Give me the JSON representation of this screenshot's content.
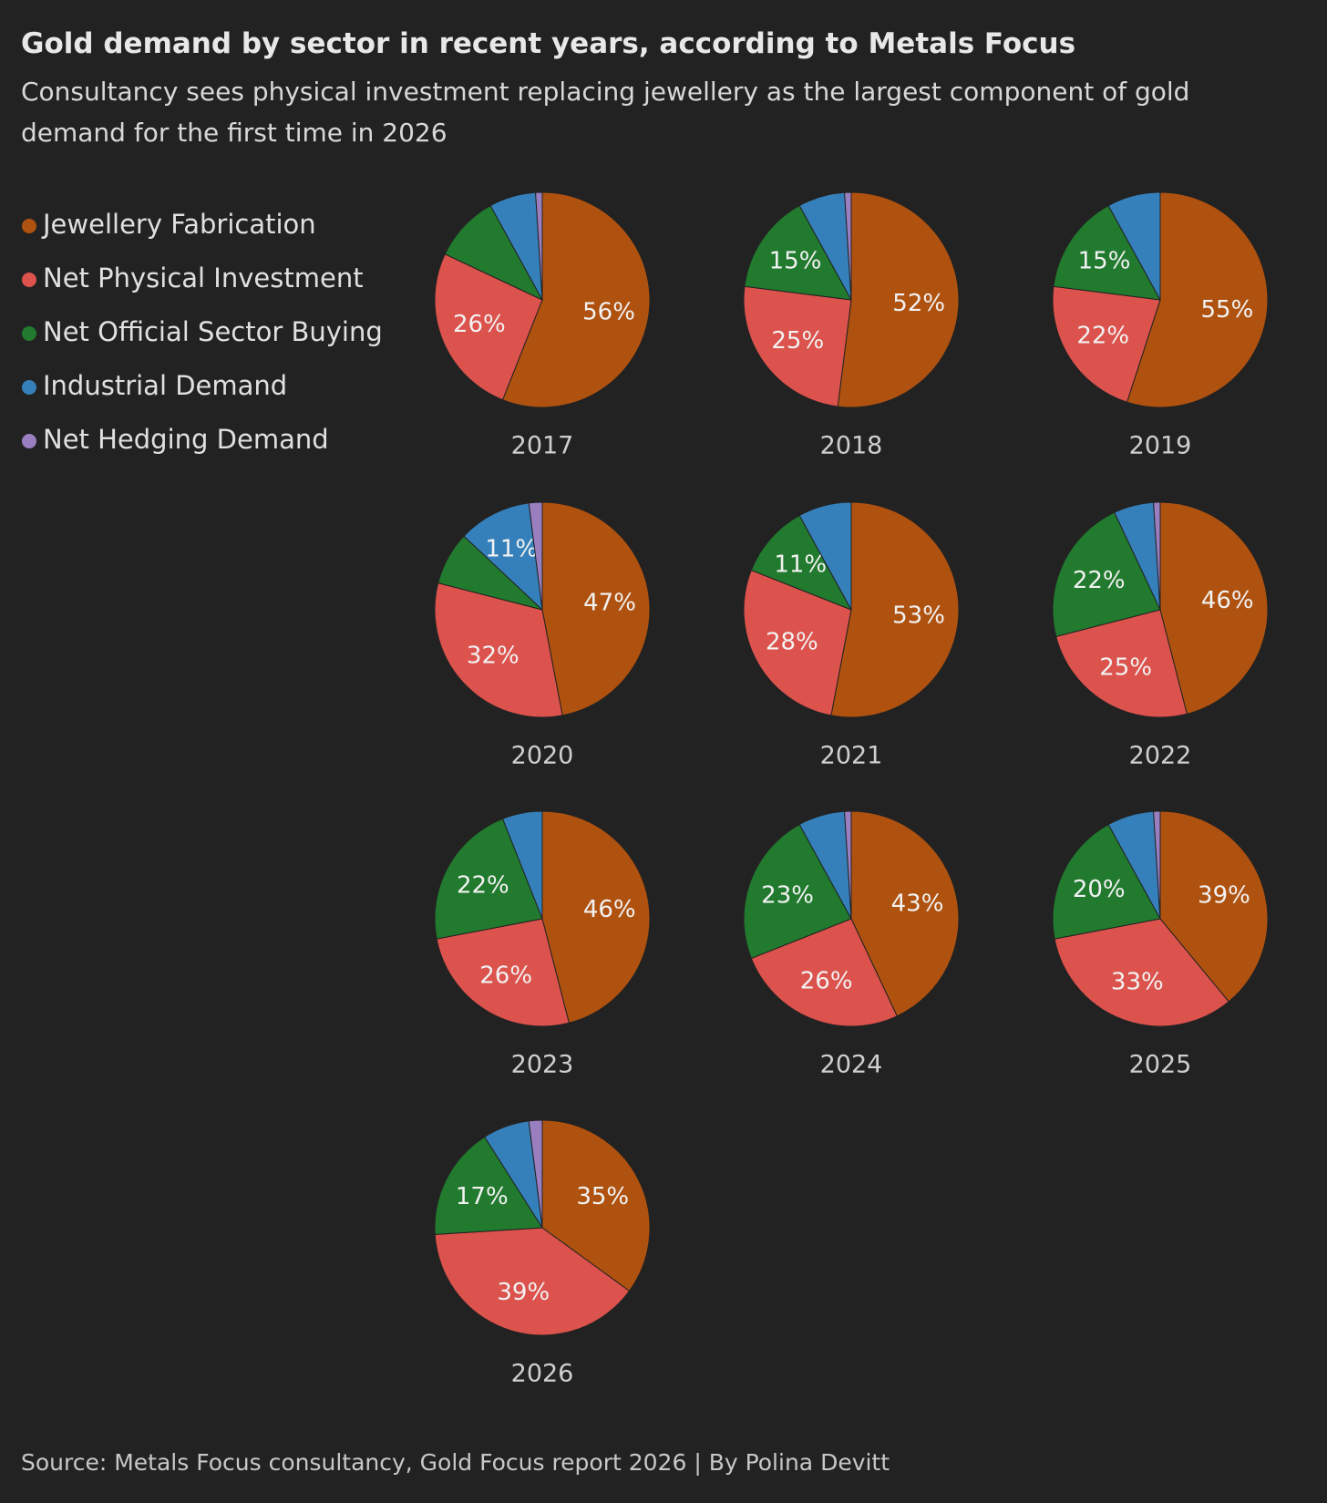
{
  "title": "Gold demand by sector in recent years, according to Metals Focus",
  "subtitle": "Consultancy sees physical investment replacing jewellery as the largest component of gold demand for the first time in 2026",
  "source": "Source: Metals Focus consultancy, Gold Focus report 2026 | By Polina Devitt",
  "chart_data": [
    {
      "type": "pie",
      "title": "2017",
      "categories": [
        "Jewellery Fabrication",
        "Net Physical Investment",
        "Net Official Sector Buying",
        "Industrial Demand",
        "Net Hedging Demand"
      ],
      "colors": [
        "#b0520f",
        "#dc524c",
        "#217a2e",
        "#3580ba",
        "#9a7fc0"
      ],
      "values": [
        56,
        26,
        10,
        7,
        1
      ],
      "value_labels": [
        "56%",
        "26%",
        null,
        null,
        null
      ]
    },
    {
      "type": "pie",
      "title": "2018",
      "categories": [
        "Jewellery Fabrication",
        "Net Physical Investment",
        "Net Official Sector Buying",
        "Industrial Demand",
        "Net Hedging Demand"
      ],
      "colors": [
        "#b0520f",
        "#dc524c",
        "#217a2e",
        "#3580ba",
        "#9a7fc0"
      ],
      "values": [
        52,
        25,
        15,
        7,
        1
      ],
      "value_labels": [
        "52%",
        "25%",
        "15%",
        null,
        null
      ]
    },
    {
      "type": "pie",
      "title": "2019",
      "categories": [
        "Jewellery Fabrication",
        "Net Physical Investment",
        "Net Official Sector Buying",
        "Industrial Demand",
        "Net Hedging Demand"
      ],
      "colors": [
        "#b0520f",
        "#dc524c",
        "#217a2e",
        "#3580ba",
        "#9a7fc0"
      ],
      "values": [
        55,
        22,
        15,
        8,
        0
      ],
      "value_labels": [
        "55%",
        "22%",
        "15%",
        null,
        null
      ]
    },
    {
      "type": "pie",
      "title": "2020",
      "categories": [
        "Jewellery Fabrication",
        "Net Physical Investment",
        "Net Official Sector Buying",
        "Industrial Demand",
        "Net Hedging Demand"
      ],
      "colors": [
        "#b0520f",
        "#dc524c",
        "#217a2e",
        "#3580ba",
        "#9a7fc0"
      ],
      "values": [
        47,
        32,
        8,
        11,
        2
      ],
      "value_labels": [
        "47%",
        "32%",
        null,
        "11%",
        null
      ]
    },
    {
      "type": "pie",
      "title": "2021",
      "categories": [
        "Jewellery Fabrication",
        "Net Physical Investment",
        "Net Official Sector Buying",
        "Industrial Demand",
        "Net Hedging Demand"
      ],
      "colors": [
        "#b0520f",
        "#dc524c",
        "#217a2e",
        "#3580ba",
        "#9a7fc0"
      ],
      "values": [
        53,
        28,
        11,
        8,
        0
      ],
      "value_labels": [
        "53%",
        "28%",
        "11%",
        null,
        null
      ]
    },
    {
      "type": "pie",
      "title": "2022",
      "categories": [
        "Jewellery Fabrication",
        "Net Physical Investment",
        "Net Official Sector Buying",
        "Industrial Demand",
        "Net Hedging Demand"
      ],
      "colors": [
        "#b0520f",
        "#dc524c",
        "#217a2e",
        "#3580ba",
        "#9a7fc0"
      ],
      "values": [
        46,
        25,
        22,
        6,
        1
      ],
      "value_labels": [
        "46%",
        "25%",
        "22%",
        null,
        null
      ]
    },
    {
      "type": "pie",
      "title": "2023",
      "categories": [
        "Jewellery Fabrication",
        "Net Physical Investment",
        "Net Official Sector Buying",
        "Industrial Demand",
        "Net Hedging Demand"
      ],
      "colors": [
        "#b0520f",
        "#dc524c",
        "#217a2e",
        "#3580ba",
        "#9a7fc0"
      ],
      "values": [
        46,
        26,
        22,
        6,
        0
      ],
      "value_labels": [
        "46%",
        "26%",
        "22%",
        null,
        null
      ]
    },
    {
      "type": "pie",
      "title": "2024",
      "categories": [
        "Jewellery Fabrication",
        "Net Physical Investment",
        "Net Official Sector Buying",
        "Industrial Demand",
        "Net Hedging Demand"
      ],
      "colors": [
        "#b0520f",
        "#dc524c",
        "#217a2e",
        "#3580ba",
        "#9a7fc0"
      ],
      "values": [
        43,
        26,
        23,
        7,
        1
      ],
      "value_labels": [
        "43%",
        "26%",
        "23%",
        null,
        null
      ]
    },
    {
      "type": "pie",
      "title": "2025",
      "categories": [
        "Jewellery Fabrication",
        "Net Physical Investment",
        "Net Official Sector Buying",
        "Industrial Demand",
        "Net Hedging Demand"
      ],
      "colors": [
        "#b0520f",
        "#dc524c",
        "#217a2e",
        "#3580ba",
        "#9a7fc0"
      ],
      "values": [
        39,
        33,
        20,
        7,
        1
      ],
      "value_labels": [
        "39%",
        "33%",
        "20%",
        null,
        null
      ]
    },
    {
      "type": "pie",
      "title": "2026",
      "categories": [
        "Jewellery Fabrication",
        "Net Physical Investment",
        "Net Official Sector Buying",
        "Industrial Demand",
        "Net Hedging Demand"
      ],
      "colors": [
        "#b0520f",
        "#dc524c",
        "#217a2e",
        "#3580ba",
        "#9a7fc0"
      ],
      "values": [
        35,
        39,
        17,
        7,
        2
      ],
      "value_labels": [
        "35%",
        "39%",
        "17%",
        null,
        null
      ]
    }
  ]
}
